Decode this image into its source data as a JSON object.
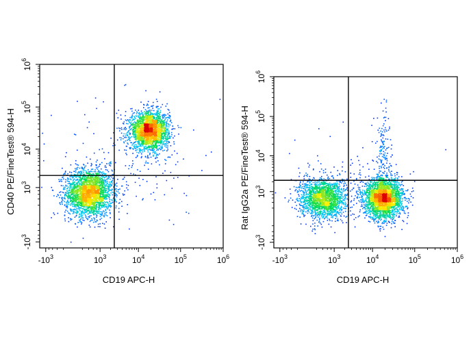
{
  "chart_data": [
    {
      "type": "scatter",
      "subtype": "flow-cytometry-density-dot-plot",
      "title": "",
      "xlabel": "CD19 APC-H",
      "ylabel": "CD40 PE/FineTest® 594-H",
      "x_scale": "biexponential",
      "y_scale": "biexponential",
      "xlim": [
        -1500,
        1000000
      ],
      "ylim": [
        -1500,
        1000000
      ],
      "x_ticks": [
        {
          "value": -1000,
          "base": "-10",
          "exp": "3"
        },
        {
          "value": 1000,
          "base": "10",
          "exp": "3"
        },
        {
          "value": 10000,
          "base": "10",
          "exp": "4"
        },
        {
          "value": 100000,
          "base": "10",
          "exp": "5"
        },
        {
          "value": 1000000,
          "base": "10",
          "exp": "6"
        }
      ],
      "y_ticks": [
        {
          "value": -1000,
          "base": "-10",
          "exp": "3"
        },
        {
          "value": 1000,
          "base": "10",
          "exp": "3"
        },
        {
          "value": 10000,
          "base": "10",
          "exp": "4"
        },
        {
          "value": 100000,
          "base": "10",
          "exp": "5"
        },
        {
          "value": 1000000,
          "base": "10",
          "exp": "6"
        }
      ],
      "quadrant_gate": {
        "x": 2500,
        "y": 2200
      },
      "grid": false,
      "populations": [
        {
          "center": [
            400,
            700
          ],
          "spread": [
            0.55,
            0.55
          ],
          "count": 2600
        },
        {
          "center": [
            18000,
            28000
          ],
          "spread": [
            0.45,
            0.45
          ],
          "count": 2400
        },
        {
          "center": [
            5000,
            5000
          ],
          "spread": [
            1.6,
            1.6
          ],
          "count": 170
        }
      ]
    },
    {
      "type": "scatter",
      "subtype": "flow-cytometry-density-dot-plot",
      "title": "",
      "xlabel": "CD19 APC-H",
      "ylabel": "Rat IgG2a PE/FineTest® 594-H",
      "x_scale": "biexponential",
      "y_scale": "biexponential",
      "xlim": [
        -1500,
        1000000
      ],
      "ylim": [
        -1500,
        1000000
      ],
      "x_ticks": [
        {
          "value": -1000,
          "base": "-10",
          "exp": "3"
        },
        {
          "value": 1000,
          "base": "10",
          "exp": "3"
        },
        {
          "value": 10000,
          "base": "10",
          "exp": "4"
        },
        {
          "value": 100000,
          "base": "10",
          "exp": "5"
        },
        {
          "value": 1000000,
          "base": "10",
          "exp": "6"
        }
      ],
      "y_ticks": [
        {
          "value": -1000,
          "base": "-10",
          "exp": "3"
        },
        {
          "value": 1000,
          "base": "10",
          "exp": "3"
        },
        {
          "value": 10000,
          "base": "10",
          "exp": "4"
        },
        {
          "value": 100000,
          "base": "10",
          "exp": "5"
        },
        {
          "value": 1000000,
          "base": "10",
          "exp": "6"
        }
      ],
      "quadrant_gate": {
        "x": 2500,
        "y": 2200
      },
      "grid": false,
      "populations": [
        {
          "center": [
            400,
            600
          ],
          "spread": [
            0.55,
            0.5
          ],
          "count": 1900
        },
        {
          "center": [
            18000,
            600
          ],
          "spread": [
            0.45,
            0.5
          ],
          "count": 2700
        },
        {
          "center": [
            18000,
            15000
          ],
          "spread": [
            0.15,
            1.1
          ],
          "count": 140
        },
        {
          "center": [
            4000,
            3000
          ],
          "spread": [
            1.5,
            1.2
          ],
          "count": 90
        }
      ]
    }
  ]
}
